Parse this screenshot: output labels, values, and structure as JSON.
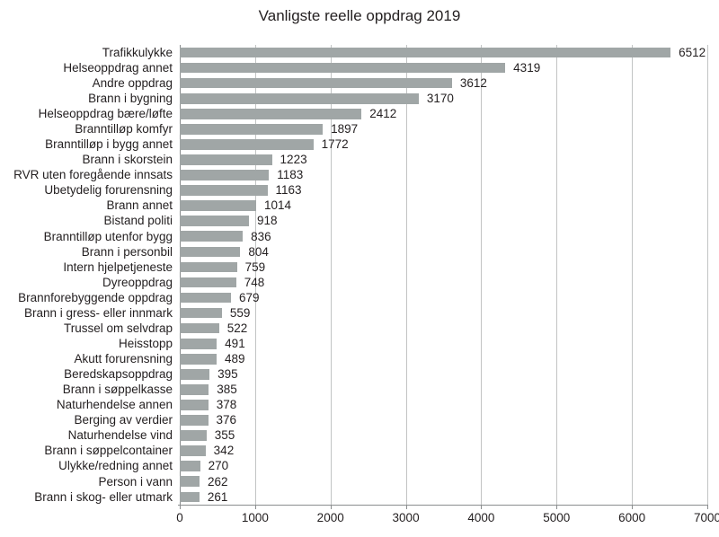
{
  "chart_data": {
    "type": "bar",
    "orientation": "horizontal",
    "title": "Vanligste reelle oppdrag 2019",
    "categories": [
      "Trafikkulykke",
      "Helseoppdrag annet",
      "Andre oppdrag",
      "Brann i bygning",
      "Helseoppdrag bære/løfte",
      "Branntilløp komfyr",
      "Branntilløp i bygg annet",
      "Brann i skorstein",
      "RVR uten foregående innsats",
      "Ubetydelig forurensning",
      "Brann annet",
      "Bistand politi",
      "Branntilløp utenfor bygg",
      "Brann i personbil",
      "Intern hjelpetjeneste",
      "Dyreoppdrag",
      "Brannforebyggende oppdrag",
      "Brann i gress- eller innmark",
      "Trussel om selvdrap",
      "Heisstopp",
      "Akutt forurensning",
      "Beredskapsoppdrag",
      "Brann i søppelkasse",
      "Naturhendelse annen",
      "Berging av verdier",
      "Naturhendelse vind",
      "Brann i søppelcontainer",
      "Ulykke/redning annet",
      "Person i vann",
      "Brann i skog- eller utmark"
    ],
    "values": [
      6512,
      4319,
      3612,
      3170,
      2412,
      1897,
      1772,
      1223,
      1183,
      1163,
      1014,
      918,
      836,
      804,
      759,
      748,
      679,
      559,
      522,
      491,
      489,
      395,
      385,
      378,
      376,
      355,
      342,
      270,
      262,
      261
    ],
    "value_labels_shown": true,
    "xlabel": "",
    "ylabel": "",
    "xlim": [
      0,
      7000
    ],
    "x_ticks": [
      0,
      1000,
      2000,
      3000,
      4000,
      5000,
      6000,
      7000
    ],
    "grid": "vertical",
    "legend": "none",
    "colors": {
      "bar": "#a0a6a6",
      "gridline": "#c2c4c4",
      "axis": "#8a8d8e",
      "text": "#231f20",
      "background": "#ffffff"
    }
  }
}
